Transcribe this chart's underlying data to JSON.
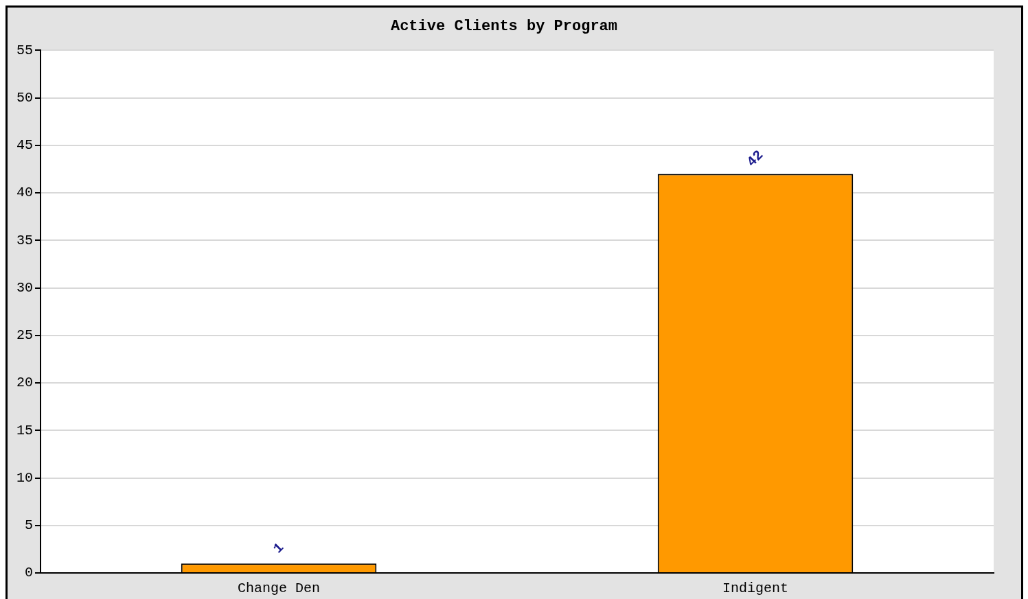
{
  "chart_data": {
    "type": "bar",
    "title": "Active Clients by Program",
    "categories": [
      "Change Den",
      "Indigent"
    ],
    "series": [
      {
        "color": "#ff9900",
        "values": [
          1,
          42
        ]
      }
    ],
    "ylim": [
      0,
      55
    ],
    "yticks": [
      0,
      5,
      10,
      15,
      20,
      25,
      30,
      35,
      40,
      45,
      50,
      55
    ],
    "grid": "y",
    "data_labels": true,
    "legend": false
  }
}
